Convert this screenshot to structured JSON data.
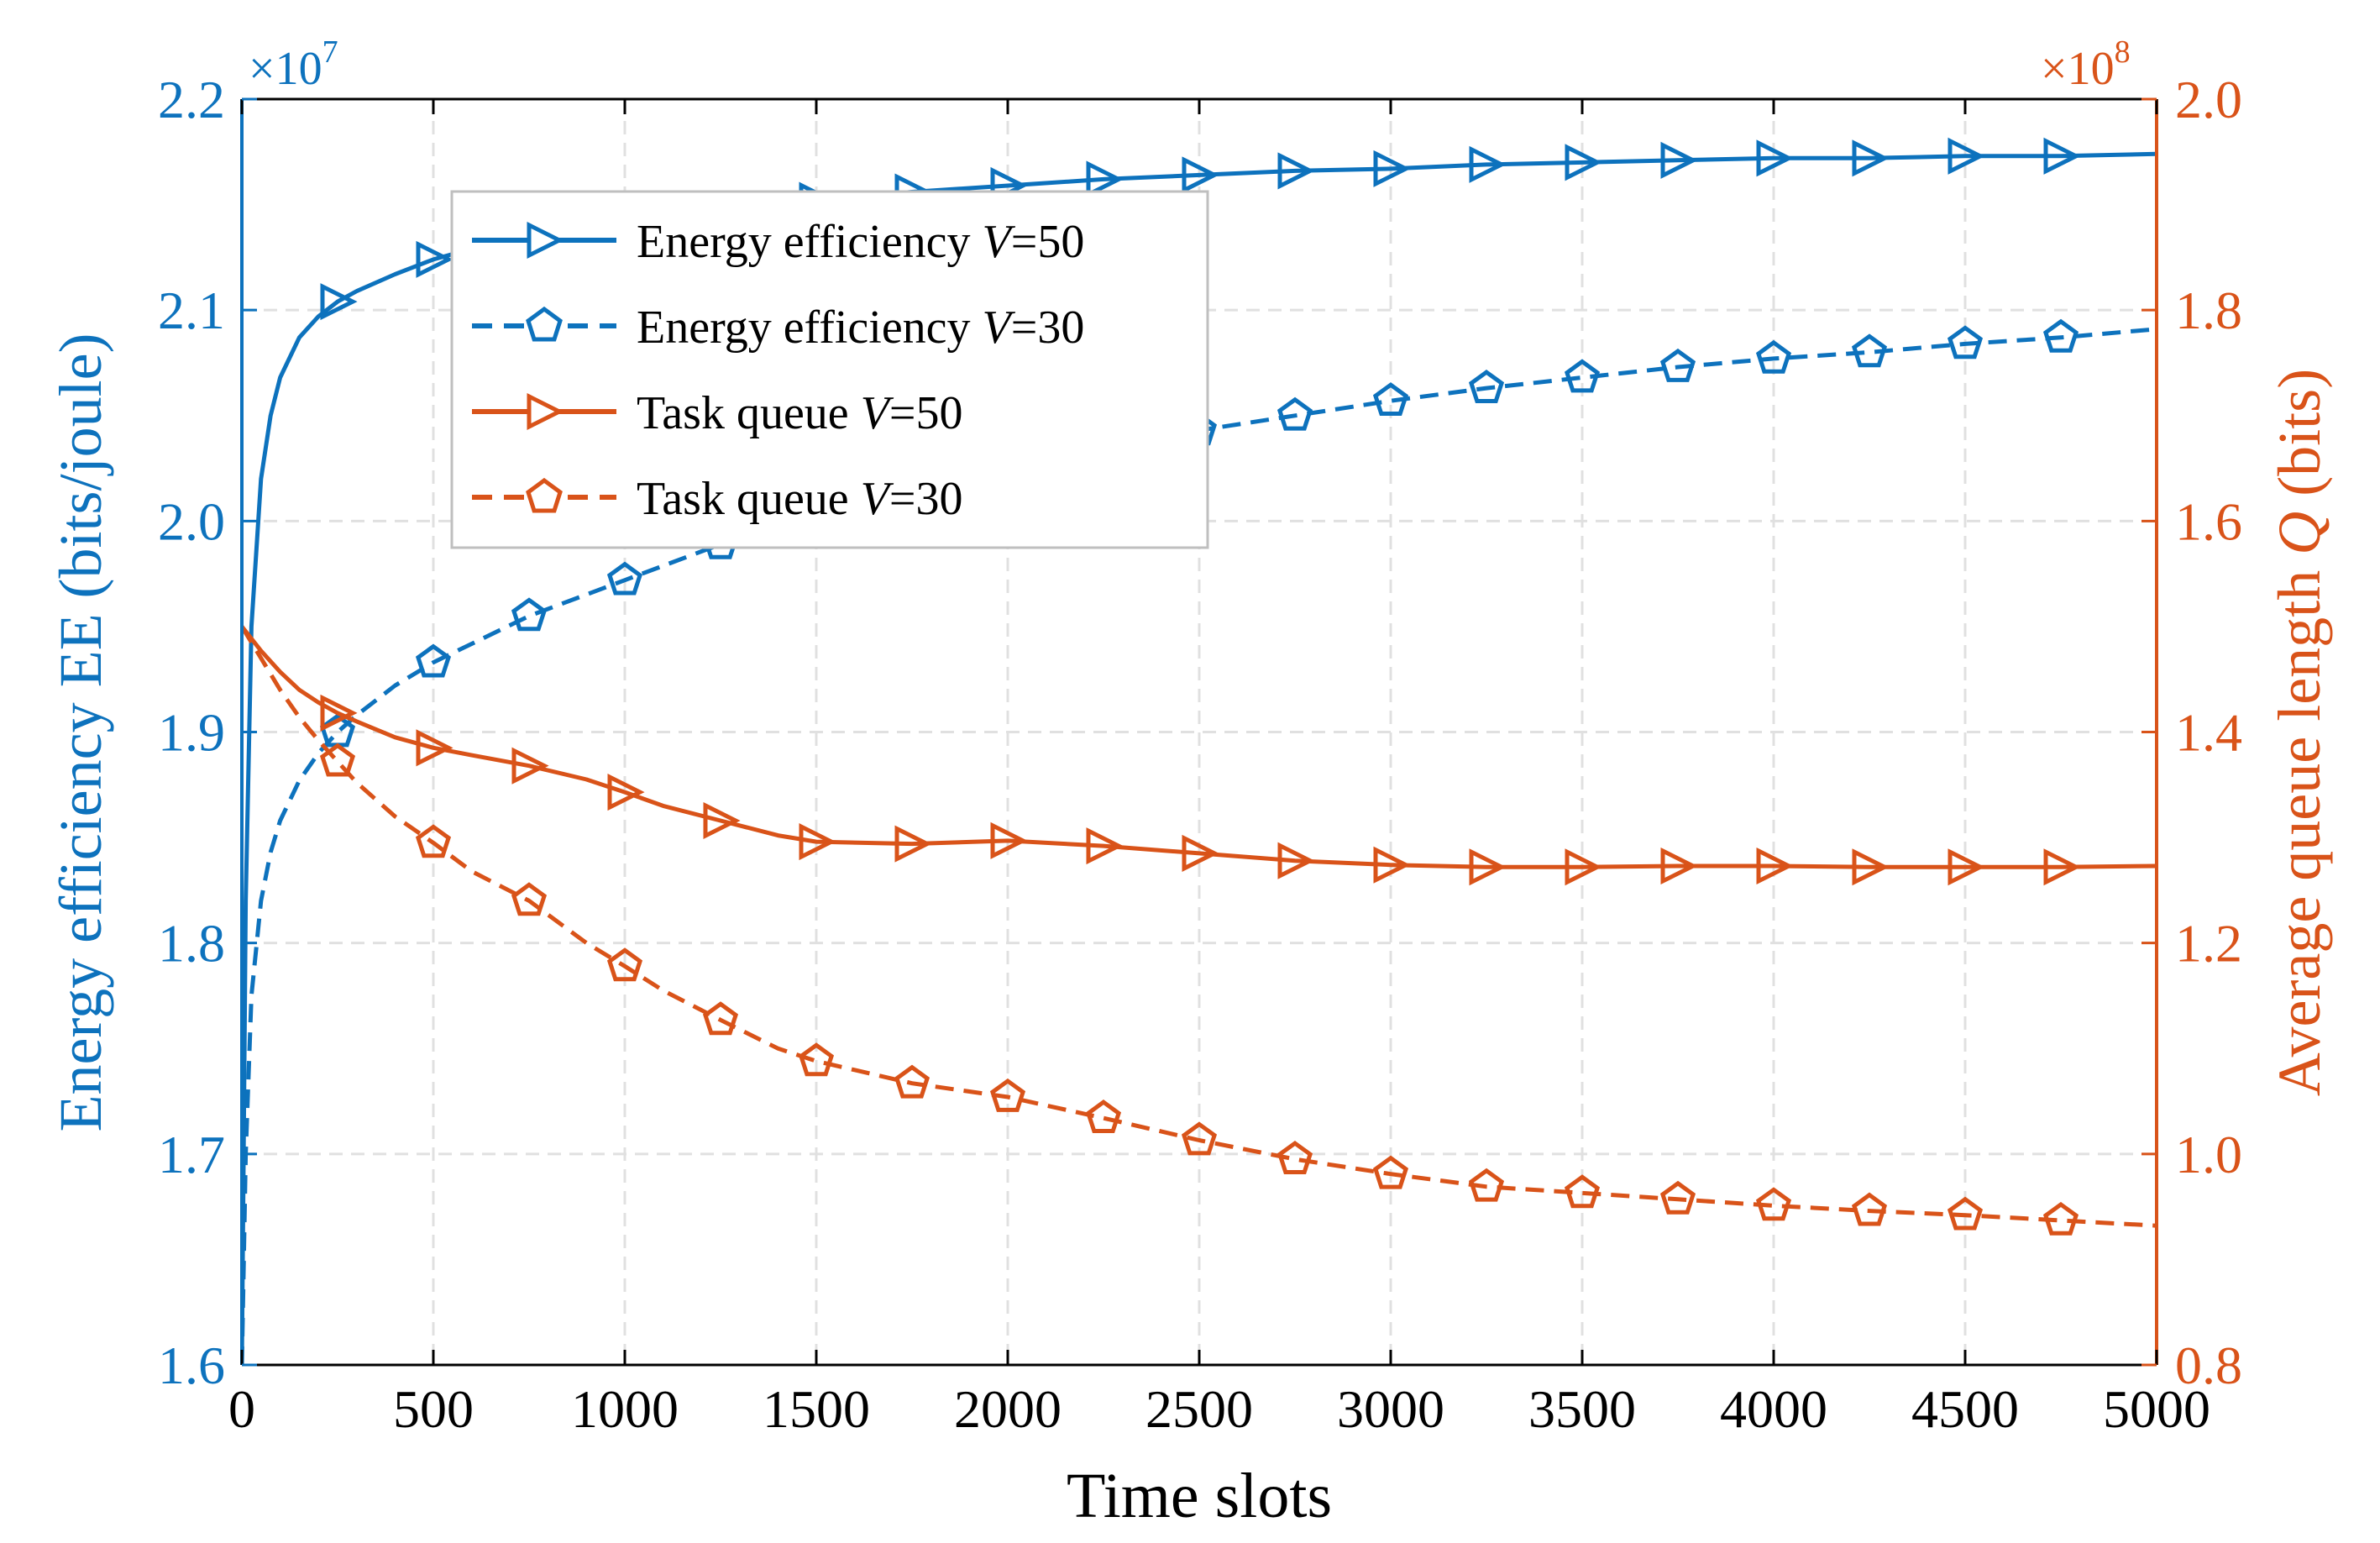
{
  "chart_data": {
    "type": "line",
    "xlabel": "Time slots",
    "x_ticks": [
      "0",
      "500",
      "1000",
      "1500",
      "2000",
      "2500",
      "3000",
      "3500",
      "4000",
      "4500",
      "5000"
    ],
    "xlim": [
      0,
      5000
    ],
    "grid": true,
    "legend_position": "top-left",
    "left_axis": {
      "label": "Energy efficiency EE (bits/joule)",
      "ylim": [
        1.6,
        2.2
      ],
      "tick_labels": [
        "1.6",
        "1.7",
        "1.8",
        "1.9",
        "2.0",
        "2.1",
        "2.2"
      ],
      "exponent": "×10",
      "exponent_power": "7",
      "color": "#0d72bd"
    },
    "right_axis": {
      "label_prefix": "Average queue length ",
      "label_symbol": "Q",
      "label_suffix": " (bits)",
      "ylim": [
        0.8,
        2.0
      ],
      "tick_labels": [
        "0.8",
        "1.0",
        "1.2",
        "1.4",
        "1.6",
        "1.8",
        "2.0"
      ],
      "exponent": "×10",
      "exponent_power": "8",
      "color": "#d95319"
    },
    "series": [
      {
        "name_prefix": "Energy efficiency ",
        "name_var": "V",
        "name_suffix": "=50",
        "axis": "left",
        "color": "#0d72bd",
        "dash": "solid",
        "marker": "triangle-right",
        "x": [
          0,
          10,
          25,
          50,
          75,
          100,
          150,
          200,
          250,
          300,
          400,
          500,
          600,
          750,
          900,
          1000,
          1250,
          1500,
          1750,
          2000,
          2250,
          2500,
          2750,
          3000,
          3250,
          3500,
          3750,
          4000,
          4250,
          4500,
          4750,
          5000
        ],
        "values": [
          1.6,
          1.82,
          1.95,
          2.02,
          2.05,
          2.068,
          2.087,
          2.097,
          2.104,
          2.109,
          2.117,
          2.124,
          2.129,
          2.135,
          2.139,
          2.141,
          2.148,
          2.152,
          2.156,
          2.159,
          2.162,
          2.164,
          2.166,
          2.167,
          2.169,
          2.17,
          2.171,
          2.172,
          2.172,
          2.173,
          2.173,
          2.174
        ]
      },
      {
        "name_prefix": "Energy efficiency ",
        "name_var": "V",
        "name_suffix": "=30",
        "axis": "left",
        "color": "#0d72bd",
        "dash": "dashed",
        "marker": "pentagon",
        "x": [
          0,
          10,
          25,
          50,
          75,
          100,
          150,
          200,
          250,
          300,
          400,
          500,
          750,
          1000,
          1250,
          1500,
          1750,
          2000,
          2250,
          2500,
          2750,
          3000,
          3250,
          3500,
          3750,
          4000,
          4250,
          4500,
          4750,
          5000
        ],
        "values": [
          1.6,
          1.7,
          1.775,
          1.82,
          1.843,
          1.858,
          1.877,
          1.89,
          1.9,
          1.908,
          1.922,
          1.933,
          1.955,
          1.972,
          1.989,
          2.003,
          2.015,
          2.026,
          2.035,
          2.043,
          2.05,
          2.057,
          2.063,
          2.068,
          2.073,
          2.077,
          2.08,
          2.084,
          2.087,
          2.091
        ]
      },
      {
        "name_prefix": "Task queue ",
        "name_var": "V",
        "name_suffix": "=50",
        "axis": "right",
        "color": "#d95319",
        "dash": "solid",
        "marker": "triangle-right",
        "x": [
          0,
          50,
          100,
          150,
          200,
          250,
          300,
          400,
          500,
          600,
          750,
          900,
          1000,
          1100,
          1250,
          1400,
          1500,
          1750,
          2000,
          2250,
          2500,
          2750,
          3000,
          3250,
          3500,
          3750,
          4000,
          4250,
          4500,
          4750,
          5000
        ],
        "values": [
          1.5,
          1.477,
          1.457,
          1.44,
          1.428,
          1.418,
          1.41,
          1.395,
          1.385,
          1.378,
          1.368,
          1.355,
          1.343,
          1.33,
          1.316,
          1.302,
          1.296,
          1.294,
          1.297,
          1.292,
          1.285,
          1.278,
          1.274,
          1.272,
          1.272,
          1.273,
          1.273,
          1.272,
          1.272,
          1.272,
          1.273
        ]
      },
      {
        "name_prefix": "Task queue ",
        "name_var": "V",
        "name_suffix": "=30",
        "axis": "right",
        "color": "#d95319",
        "dash": "dashed",
        "marker": "pentagon",
        "x": [
          0,
          50,
          100,
          150,
          200,
          250,
          300,
          400,
          500,
          600,
          750,
          900,
          1000,
          1100,
          1250,
          1400,
          1500,
          1750,
          2000,
          2250,
          2500,
          2750,
          3000,
          3250,
          3500,
          3750,
          4000,
          4250,
          4500,
          4750,
          5000
        ],
        "values": [
          1.5,
          1.47,
          1.44,
          1.414,
          1.392,
          1.372,
          1.352,
          1.32,
          1.295,
          1.268,
          1.24,
          1.2,
          1.178,
          1.155,
          1.127,
          1.1,
          1.088,
          1.067,
          1.054,
          1.034,
          1.013,
          0.995,
          0.981,
          0.969,
          0.963,
          0.957,
          0.951,
          0.946,
          0.942,
          0.937,
          0.932
        ]
      }
    ]
  }
}
